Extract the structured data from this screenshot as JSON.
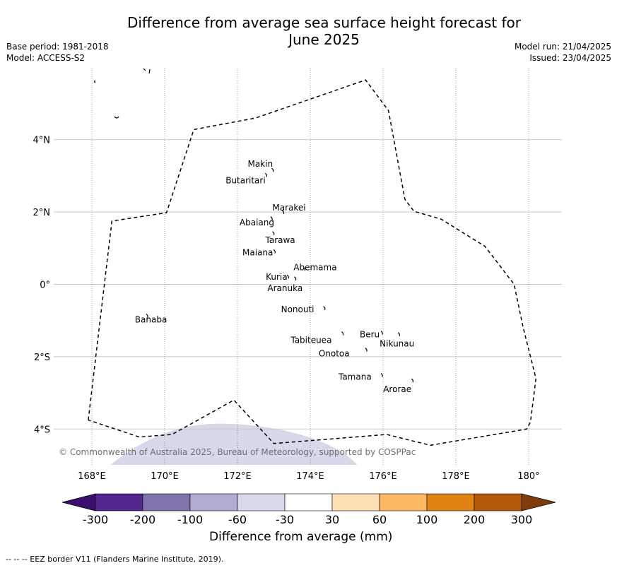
{
  "title_line1": "Difference from average sea surface height forecast for",
  "title_line2": "June 2025",
  "meta_left": [
    "Base period: 1981-2018",
    "Model: ACCESS-S2"
  ],
  "meta_right": [
    "Model run: 21/04/2025",
    "Issued: 23/04/2025"
  ],
  "copyright": "© Commonwealth of Australia 2025, Bureau of Meteorology, supported by COSPPac",
  "footer": "-- -- -- EEZ border V11 (Flanders Marine Institute, 2019).",
  "map": {
    "lon_range": [
      167,
      181
    ],
    "lat_range": [
      -5,
      6
    ],
    "lon_ticks": [
      168,
      170,
      172,
      174,
      176,
      178,
      180
    ],
    "lon_tick_labels": [
      "168°E",
      "170°E",
      "172°E",
      "174°E",
      "176°E",
      "178°E",
      "180°"
    ],
    "lat_ticks": [
      4,
      2,
      0,
      -2,
      -4
    ],
    "lat_tick_labels": [
      "4°N",
      "2°N",
      "0°",
      "2°S",
      "4°S"
    ],
    "islands": [
      {
        "name": "Makin",
        "lon": 172.98,
        "lat": 3.17
      },
      {
        "name": "Butaritari",
        "lon": 172.8,
        "lat": 3.03
      },
      {
        "name": "Marakei",
        "lon": 173.27,
        "lat": 2.0
      },
      {
        "name": "Abaiang",
        "lon": 172.95,
        "lat": 1.83
      },
      {
        "name": "Tarawa",
        "lon": 173.0,
        "lat": 1.42
      },
      {
        "name": "Maiana",
        "lon": 173.03,
        "lat": 0.92
      },
      {
        "name": "Abemama",
        "lon": 173.85,
        "lat": 0.43
      },
      {
        "name": "Kuria",
        "lon": 173.4,
        "lat": 0.22
      },
      {
        "name": "Aranuka",
        "lon": 173.6,
        "lat": 0.17
      },
      {
        "name": "Nonouti",
        "lon": 174.4,
        "lat": -0.65
      },
      {
        "name": "Banaba",
        "lon": 169.53,
        "lat": -0.86
      },
      {
        "name": "Tabiteuea",
        "lon": 174.9,
        "lat": -1.35
      },
      {
        "name": "Beru",
        "lon": 175.98,
        "lat": -1.33
      },
      {
        "name": "Nikunau",
        "lon": 176.45,
        "lat": -1.37
      },
      {
        "name": "Onotoa",
        "lon": 175.55,
        "lat": -1.8
      },
      {
        "name": "Tamana",
        "lon": 175.98,
        "lat": -2.5
      },
      {
        "name": "Arorae",
        "lon": 176.82,
        "lat": -2.65
      }
    ],
    "eez_border": [
      [
        167.9,
        -3.75
      ],
      [
        168.55,
        1.75
      ],
      [
        170.05,
        1.98
      ],
      [
        170.8,
        4.28
      ],
      [
        172.5,
        4.6
      ],
      [
        175.52,
        5.65
      ],
      [
        176.15,
        4.8
      ],
      [
        176.6,
        2.35
      ],
      [
        176.85,
        2.02
      ],
      [
        177.6,
        1.8
      ],
      [
        178.8,
        1.05
      ],
      [
        179.6,
        0.0
      ],
      [
        179.85,
        -1.2
      ],
      [
        180.2,
        -2.6
      ],
      [
        180.05,
        -3.8
      ],
      [
        179.95,
        -4.0
      ],
      [
        177.3,
        -4.45
      ],
      [
        176.1,
        -4.15
      ],
      [
        173.0,
        -4.4
      ],
      [
        171.9,
        -3.2
      ],
      [
        170.2,
        -4.15
      ],
      [
        169.3,
        -4.22
      ],
      [
        167.9,
        -3.75
      ]
    ],
    "anomaly_patch": {
      "color": "#d7d8ea",
      "peak": [
        171.5,
        -3.85
      ],
      "base": [
        [
          168.5,
          -5.0
        ],
        [
          175.3,
          -5.0
        ]
      ]
    }
  },
  "colorbar": {
    "title": "Difference from average (mm)",
    "tick_labels": [
      "-300",
      "-200",
      "-100",
      "-60",
      "-30",
      "30",
      "60",
      "100",
      "200",
      "300"
    ],
    "low_extend_color": "#3b0f6f",
    "high_extend_color": "#7f3b08",
    "colors": [
      "#54278f",
      "#8073ac",
      "#b2abd2",
      "#d8daeb",
      "#ffffff",
      "#fee0b6",
      "#fdb863",
      "#e08214",
      "#b35806"
    ]
  }
}
